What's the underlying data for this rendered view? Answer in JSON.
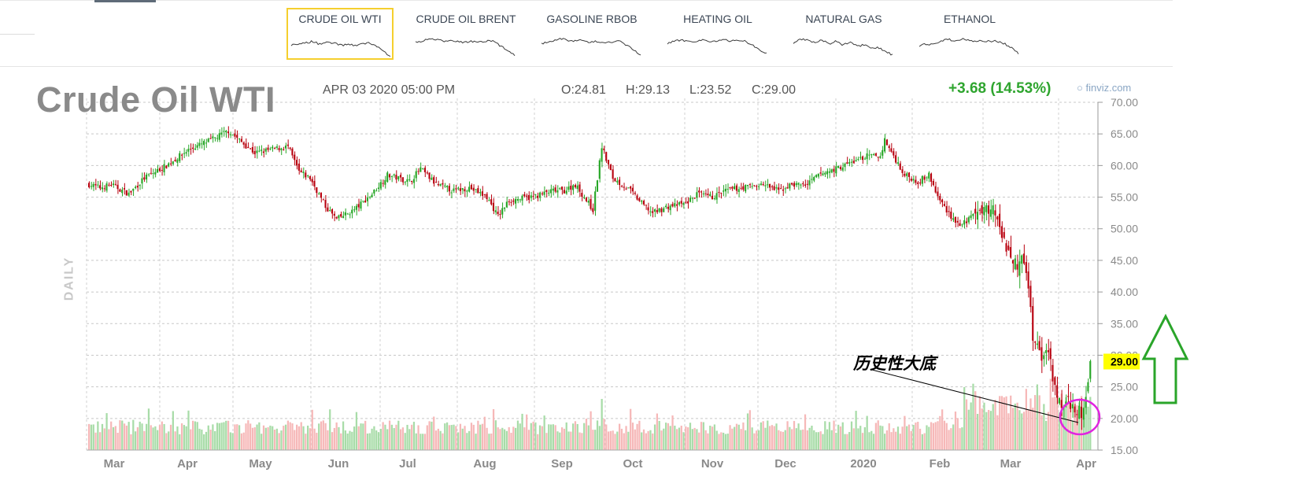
{
  "tabs": [
    {
      "label": "CRUDE OIL WTI",
      "active": true
    },
    {
      "label": "CRUDE OIL BRENT",
      "active": false
    },
    {
      "label": "GASOLINE RBOB",
      "active": false
    },
    {
      "label": "HEATING OIL",
      "active": false
    },
    {
      "label": "NATURAL GAS",
      "active": false
    },
    {
      "label": "ETHANOL",
      "active": false
    }
  ],
  "header": {
    "title": "Crude Oil WTI",
    "datetime": "APR 03 2020 05:00 PM",
    "open": "O:24.81",
    "high": "H:29.13",
    "low": "L:23.52",
    "close": "C:29.00",
    "change": "+3.68 (14.53%)",
    "brand": "finviz.com",
    "period": "DAILY"
  },
  "annotation": {
    "text": "历史性大底"
  },
  "colors": {
    "up": "#26a626",
    "down": "#b8000e",
    "up_volume": "#a8dca8",
    "down_volume": "#f6b8b8",
    "highlight": "#ffff00",
    "circle": "#e024e0",
    "arrow": "#2aa52a",
    "tab_border": "#f5cf2e"
  },
  "chart_data": {
    "type": "candlestick",
    "ylim": [
      15,
      70
    ],
    "yticks": [
      "70.00",
      "65.00",
      "60.00",
      "55.00",
      "50.00",
      "45.00",
      "40.00",
      "35.00",
      "30.00",
      "25.00",
      "20.00",
      "15.00"
    ],
    "xticks": [
      "Mar",
      "Apr",
      "May",
      "Jun",
      "Jul",
      "Aug",
      "Sep",
      "Oct",
      "Nov",
      "Dec",
      "2020",
      "Feb",
      "Mar",
      "Apr"
    ],
    "last_price": "29.00",
    "series": [
      {
        "name": "close",
        "x": [
          "Mar",
          "Apr",
          "May",
          "Jun",
          "Jul",
          "Aug",
          "Sep",
          "Oct",
          "Nov",
          "Dec",
          "2020",
          "Feb",
          "Mar",
          "Apr"
        ],
        "values": [
          56.5,
          60.0,
          63.5,
          52.0,
          58.5,
          55.5,
          56.0,
          53.0,
          56.5,
          58.0,
          61.5,
          51.0,
          44.0,
          29.0
        ]
      }
    ],
    "anchors": [
      [
        0,
        57
      ],
      [
        5,
        56.5
      ],
      [
        10,
        57
      ],
      [
        18,
        55.5
      ],
      [
        25,
        58
      ],
      [
        35,
        60
      ],
      [
        45,
        62.5
      ],
      [
        55,
        64
      ],
      [
        63,
        65.5
      ],
      [
        68,
        64
      ],
      [
        75,
        62
      ],
      [
        82,
        62.5
      ],
      [
        90,
        63
      ],
      [
        95,
        59
      ],
      [
        100,
        58
      ],
      [
        107,
        53.5
      ],
      [
        112,
        51.5
      ],
      [
        120,
        53
      ],
      [
        128,
        55.5
      ],
      [
        135,
        58.5
      ],
      [
        140,
        58
      ],
      [
        145,
        57.5
      ],
      [
        150,
        59.5
      ],
      [
        157,
        57
      ],
      [
        165,
        56
      ],
      [
        172,
        56.5
      ],
      [
        180,
        55
      ],
      [
        185,
        52
      ],
      [
        190,
        54.5
      ],
      [
        200,
        55
      ],
      [
        210,
        56
      ],
      [
        215,
        56
      ],
      [
        220,
        57
      ],
      [
        228,
        53
      ],
      [
        232,
        63
      ],
      [
        237,
        58
      ],
      [
        245,
        56
      ],
      [
        250,
        54
      ],
      [
        255,
        52.5
      ],
      [
        262,
        53.5
      ],
      [
        270,
        54
      ],
      [
        275,
        55.5
      ],
      [
        282,
        55
      ],
      [
        288,
        56
      ],
      [
        295,
        56.5
      ],
      [
        305,
        57
      ],
      [
        312,
        56
      ],
      [
        318,
        57
      ],
      [
        325,
        57
      ],
      [
        330,
        58.5
      ],
      [
        338,
        59.5
      ],
      [
        345,
        60.5
      ],
      [
        352,
        61.5
      ],
      [
        358,
        61.5
      ],
      [
        360,
        64
      ],
      [
        364,
        61.5
      ],
      [
        369,
        58.5
      ],
      [
        375,
        57.5
      ],
      [
        380,
        58.5
      ],
      [
        384,
        55
      ],
      [
        390,
        52
      ],
      [
        394,
        50.5
      ],
      [
        400,
        52
      ],
      [
        406,
        53.5
      ],
      [
        410,
        52.5
      ],
      [
        413,
        49
      ],
      [
        417,
        46
      ],
      [
        420,
        44
      ],
      [
        422,
        46
      ],
      [
        425,
        41
      ],
      [
        427,
        33
      ],
      [
        430,
        30
      ],
      [
        433,
        31
      ],
      [
        436,
        27
      ],
      [
        440,
        21.5
      ],
      [
        444,
        22.5
      ],
      [
        449,
        20.5
      ],
      [
        451,
        23.5
      ],
      [
        453,
        29
      ]
    ]
  }
}
